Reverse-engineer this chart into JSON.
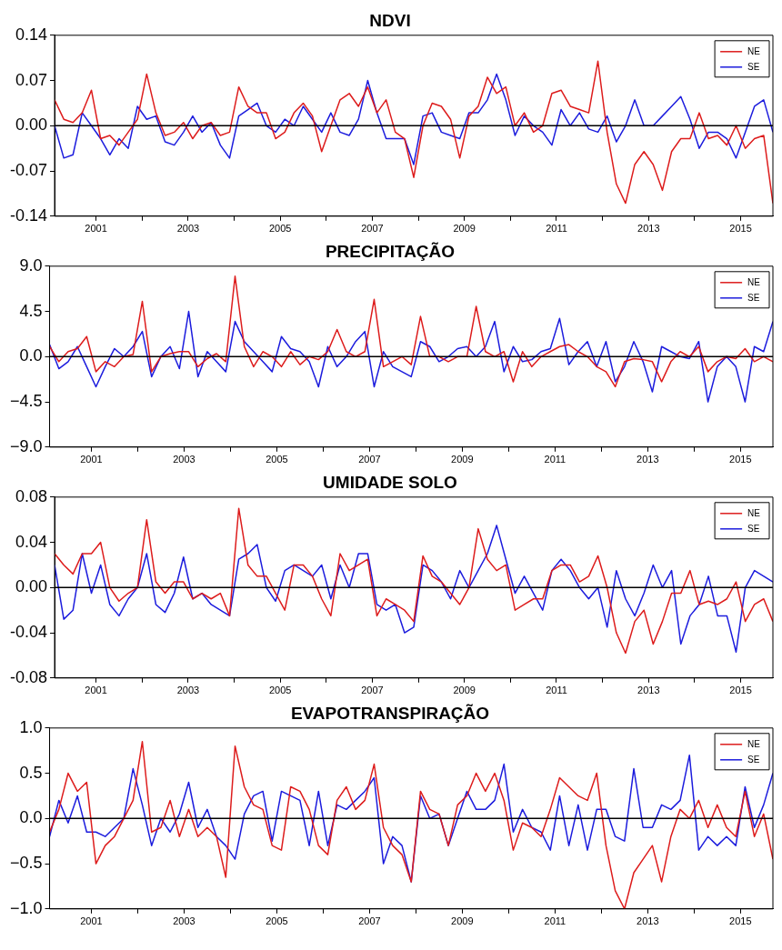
{
  "chart_data": [
    {
      "type": "line",
      "title": "NDVI",
      "legend": "top right",
      "grid": false,
      "xlim": [
        2000.1,
        2015.7
      ],
      "ylim": [
        -0.14,
        0.14
      ],
      "xticks": [
        2001,
        {
          "value": 2002,
          "label": null
        },
        2003,
        {
          "value": 2004,
          "label": null
        },
        2005,
        {
          "value": 2006,
          "label": null
        },
        2007,
        {
          "value": 2008,
          "label": null
        },
        2009,
        {
          "value": 2010,
          "label": null
        },
        2011,
        {
          "value": 2012,
          "label": null
        },
        2013,
        {
          "value": 2014,
          "label": null
        },
        2015
      ],
      "yticks": [
        -0.14,
        -0.07,
        {
          "value": 0,
          "label": "0.00"
        },
        0.07,
        0.14
      ],
      "ref_lines": [
        {
          "axis": "y",
          "value": 0,
          "color": "#000000"
        }
      ],
      "x": [
        2000.1,
        2000.3,
        2000.5,
        2000.7,
        2000.9,
        2001.1,
        2001.3,
        2001.5,
        2001.7,
        2001.9,
        2002.1,
        2002.3,
        2002.5,
        2002.7,
        2002.9,
        2003.1,
        2003.3,
        2003.5,
        2003.7,
        2003.9,
        2004.1,
        2004.3,
        2004.5,
        2004.7,
        2004.9,
        2005.1,
        2005.3,
        2005.5,
        2005.7,
        2005.9,
        2006.1,
        2006.3,
        2006.5,
        2006.7,
        2006.9,
        2007.1,
        2007.3,
        2007.5,
        2007.7,
        2007.9,
        2008.1,
        2008.3,
        2008.5,
        2008.7,
        2008.9,
        2009.1,
        2009.3,
        2009.5,
        2009.7,
        2009.9,
        2010.1,
        2010.3,
        2010.5,
        2010.7,
        2010.9,
        2011.1,
        2011.3,
        2011.5,
        2011.7,
        2011.9,
        2012.1,
        2012.3,
        2012.5,
        2012.7,
        2012.9,
        2013.1,
        2013.3,
        2013.5,
        2013.7,
        2013.9,
        2014.1,
        2014.3,
        2014.5,
        2014.7,
        2014.9,
        2015.1,
        2015.3,
        2015.5,
        2015.7
      ],
      "series": [
        {
          "name": "NE",
          "color": "#dd1c1c",
          "values": [
            0.04,
            0.01,
            0.005,
            0.02,
            0.055,
            -0.02,
            -0.015,
            -0.03,
            -0.01,
            0.01,
            0.08,
            0.02,
            -0.015,
            -0.01,
            0.005,
            -0.02,
            0,
            0.005,
            -0.015,
            -0.01,
            0.06,
            0.03,
            0.02,
            0.02,
            -0.02,
            -0.01,
            0.02,
            0.035,
            0.015,
            -0.04,
            0,
            0.04,
            0.05,
            0.03,
            0.06,
            0.02,
            0.04,
            -0.01,
            -0.02,
            -0.08,
            0,
            0.035,
            0.03,
            0.01,
            -0.05,
            0.015,
            0.03,
            0.075,
            0.05,
            0.06,
            0,
            0.02,
            -0.01,
            0,
            0.05,
            0.055,
            0.03,
            0.025,
            0.02,
            0.1,
            -0.01,
            -0.09,
            -0.12,
            -0.06,
            -0.04,
            -0.06,
            -0.1,
            -0.04,
            -0.02,
            -0.02,
            0.02,
            -0.02,
            -0.015,
            -0.03,
            0,
            -0.035,
            -0.02,
            -0.015,
            -0.12
          ]
        },
        {
          "name": "SE",
          "color": "#1c1cdd",
          "values": [
            0,
            -0.05,
            -0.045,
            0.02,
            0,
            -0.02,
            -0.045,
            -0.02,
            -0.035,
            0.03,
            0.01,
            0.015,
            -0.025,
            -0.03,
            -0.01,
            0.015,
            -0.01,
            0.005,
            -0.03,
            -0.05,
            0.015,
            0.025,
            0.035,
            0,
            -0.01,
            0.01,
            0,
            0.03,
            0.01,
            -0.01,
            0.02,
            -0.01,
            -0.015,
            0.01,
            0.07,
            0.02,
            -0.02,
            -0.02,
            -0.02,
            -0.06,
            0.015,
            0.02,
            -0.01,
            -0.015,
            -0.02,
            0.02,
            0.02,
            0.04,
            0.08,
            0.04,
            -0.015,
            0.015,
            0,
            -0.01,
            -0.03,
            0.025,
            0,
            0.02,
            -0.005,
            -0.01,
            0.015,
            -0.025,
            0,
            0.04,
            0,
            0,
            0.015,
            0.03,
            0.045,
            0.01,
            -0.035,
            -0.01,
            -0.01,
            -0.02,
            -0.05,
            -0.01,
            0.03,
            0.04,
            -0.01
          ]
        }
      ]
    },
    {
      "type": "line",
      "title": "PRECIPITAÇÃO",
      "legend": "top right",
      "grid": false,
      "xlim": [
        2000.1,
        2015.7
      ],
      "ylim": [
        -9,
        9
      ],
      "xticks": [
        2001,
        {
          "value": 2002,
          "label": null
        },
        2003,
        {
          "value": 2004,
          "label": null
        },
        2005,
        {
          "value": 2006,
          "label": null
        },
        2007,
        {
          "value": 2008,
          "label": null
        },
        2009,
        {
          "value": 2010,
          "label": null
        },
        2011,
        {
          "value": 2012,
          "label": null
        },
        2013,
        {
          "value": 2014,
          "label": null
        },
        2015
      ],
      "yticks": [
        {
          "value": -9,
          "label": "−9.0"
        },
        {
          "value": -4.5,
          "label": "−4.5"
        },
        {
          "value": 0,
          "label": "0.0"
        },
        {
          "value": 4.5,
          "label": "4.5"
        },
        {
          "value": 9,
          "label": "9.0"
        }
      ],
      "ref_lines": [
        {
          "axis": "y",
          "value": 0,
          "color": "#000000"
        }
      ],
      "x": [
        2000.1,
        2000.3,
        2000.5,
        2000.7,
        2000.9,
        2001.1,
        2001.3,
        2001.5,
        2001.7,
        2001.9,
        2002.1,
        2002.3,
        2002.5,
        2002.7,
        2002.9,
        2003.1,
        2003.3,
        2003.5,
        2003.7,
        2003.9,
        2004.1,
        2004.3,
        2004.5,
        2004.7,
        2004.9,
        2005.1,
        2005.3,
        2005.5,
        2005.7,
        2005.9,
        2006.1,
        2006.3,
        2006.5,
        2006.7,
        2006.9,
        2007.1,
        2007.3,
        2007.5,
        2007.7,
        2007.9,
        2008.1,
        2008.3,
        2008.5,
        2008.7,
        2008.9,
        2009.1,
        2009.3,
        2009.5,
        2009.7,
        2009.9,
        2010.1,
        2010.3,
        2010.5,
        2010.7,
        2010.9,
        2011.1,
        2011.3,
        2011.5,
        2011.7,
        2011.9,
        2012.1,
        2012.3,
        2012.5,
        2012.7,
        2012.9,
        2013.1,
        2013.3,
        2013.5,
        2013.7,
        2013.9,
        2014.1,
        2014.3,
        2014.5,
        2014.7,
        2014.9,
        2015.1,
        2015.3,
        2015.5,
        2015.7
      ],
      "series": [
        {
          "name": "NE",
          "color": "#dd1c1c",
          "values": [
            1.0,
            -0.5,
            0.5,
            0.8,
            2.0,
            -1.5,
            -0.5,
            -1.0,
            0.0,
            0.2,
            5.5,
            -1.5,
            0.0,
            0.3,
            0.5,
            0.5,
            -1.0,
            -0.2,
            0.3,
            -0.5,
            8.0,
            1.0,
            -1.0,
            0.5,
            0.0,
            -1.0,
            0.5,
            -0.8,
            0.0,
            -0.3,
            0.5,
            2.7,
            0.5,
            0.0,
            0.5,
            5.7,
            -1.0,
            -0.5,
            0.0,
            -0.8,
            4.0,
            0.0,
            0.0,
            -0.5,
            0.0,
            0.0,
            5.0,
            0.5,
            0.0,
            0.5,
            -2.5,
            0.5,
            -1.0,
            0.0,
            0.5,
            1.0,
            1.2,
            0.5,
            0.0,
            -1.0,
            -1.5,
            -3.0,
            -0.5,
            -0.2,
            -0.3,
            -0.5,
            -2.5,
            -0.5,
            0.5,
            0.0,
            1.0,
            -1.5,
            -0.5,
            0.0,
            -0.2,
            0.8,
            -0.5,
            0.0,
            -0.5
          ]
        },
        {
          "name": "SE",
          "color": "#1c1cdd",
          "values": [
            1.2,
            -1.2,
            -0.5,
            1.0,
            -1.0,
            -3.0,
            -1.0,
            0.8,
            0.0,
            1.0,
            2.5,
            -2.0,
            0.0,
            1.0,
            -1.2,
            4.5,
            -2.0,
            0.5,
            -0.5,
            -1.5,
            3.5,
            1.5,
            0.5,
            -0.5,
            -1.5,
            2.0,
            0.8,
            0.5,
            -0.5,
            -3.0,
            1.0,
            -1.0,
            0.0,
            1.5,
            2.5,
            -3.0,
            0.5,
            -1.0,
            -1.5,
            -2.0,
            1.5,
            1.0,
            -0.5,
            0.0,
            0.8,
            1.0,
            0.0,
            1.0,
            3.5,
            -1.5,
            1.0,
            -0.5,
            -0.3,
            0.5,
            0.8,
            3.8,
            -0.8,
            0.5,
            1.5,
            -1.0,
            1.5,
            -2.5,
            -1.0,
            1.5,
            -0.5,
            -3.5,
            1.0,
            0.5,
            0.0,
            -0.2,
            1.5,
            -4.5,
            -1.0,
            0.0,
            -1.0,
            -4.5,
            1.0,
            0.5,
            3.5
          ]
        }
      ]
    },
    {
      "type": "line",
      "title": "UMIDADE SOLO",
      "legend": "top right",
      "grid": false,
      "xlim": [
        2000.1,
        2015.7
      ],
      "ylim": [
        -0.08,
        0.08
      ],
      "xticks": [
        2001,
        {
          "value": 2002,
          "label": null
        },
        2003,
        {
          "value": 2004,
          "label": null
        },
        2005,
        {
          "value": 2006,
          "label": null
        },
        2007,
        {
          "value": 2008,
          "label": null
        },
        2009,
        {
          "value": 2010,
          "label": null
        },
        2011,
        {
          "value": 2012,
          "label": null
        },
        2013,
        {
          "value": 2014,
          "label": null
        },
        2015
      ],
      "yticks": [
        {
          "value": -0.08,
          "label": "-0.08"
        },
        {
          "value": -0.04,
          "label": "-0.04"
        },
        {
          "value": 0,
          "label": "0.00"
        },
        {
          "value": 0.04,
          "label": "0.04"
        },
        {
          "value": 0.08,
          "label": "0.08"
        }
      ],
      "ref_lines": [
        {
          "axis": "y",
          "value": 0,
          "color": "#000000"
        }
      ],
      "x": [
        2000.1,
        2000.3,
        2000.5,
        2000.7,
        2000.9,
        2001.1,
        2001.3,
        2001.5,
        2001.7,
        2001.9,
        2002.1,
        2002.3,
        2002.5,
        2002.7,
        2002.9,
        2003.1,
        2003.3,
        2003.5,
        2003.7,
        2003.9,
        2004.1,
        2004.3,
        2004.5,
        2004.7,
        2004.9,
        2005.1,
        2005.3,
        2005.5,
        2005.7,
        2005.9,
        2006.1,
        2006.3,
        2006.5,
        2006.7,
        2006.9,
        2007.1,
        2007.3,
        2007.5,
        2007.7,
        2007.9,
        2008.1,
        2008.3,
        2008.5,
        2008.7,
        2008.9,
        2009.1,
        2009.3,
        2009.5,
        2009.7,
        2009.9,
        2010.1,
        2010.3,
        2010.5,
        2010.7,
        2010.9,
        2011.1,
        2011.3,
        2011.5,
        2011.7,
        2011.9,
        2012.1,
        2012.3,
        2012.5,
        2012.7,
        2012.9,
        2013.1,
        2013.3,
        2013.5,
        2013.7,
        2013.9,
        2014.1,
        2014.3,
        2014.5,
        2014.7,
        2014.9,
        2015.1,
        2015.3,
        2015.5,
        2015.7
      ],
      "series": [
        {
          "name": "NE",
          "color": "#dd1c1c",
          "values": [
            0.03,
            0.02,
            0.012,
            0.03,
            0.03,
            0.04,
            0,
            -0.012,
            -0.005,
            0,
            0.06,
            0.005,
            -0.005,
            0.005,
            0.005,
            -0.01,
            -0.005,
            -0.01,
            -0.005,
            -0.025,
            0.07,
            0.02,
            0.01,
            0.01,
            -0.005,
            -0.02,
            0.02,
            0.02,
            0.01,
            -0.01,
            -0.025,
            0.03,
            0.015,
            0.02,
            0.025,
            -0.025,
            -0.01,
            -0.015,
            -0.02,
            -0.03,
            0.028,
            0.01,
            0.005,
            -0.005,
            -0.015,
            0,
            0.052,
            0.025,
            0.015,
            0.02,
            -0.02,
            -0.015,
            -0.01,
            -0.01,
            0.015,
            0.02,
            0.02,
            0.005,
            0.01,
            0.028,
            0,
            -0.04,
            -0.058,
            -0.03,
            -0.02,
            -0.05,
            -0.03,
            -0.005,
            -0.005,
            0.015,
            -0.015,
            -0.012,
            -0.015,
            -0.01,
            0.005,
            -0.03,
            -0.015,
            -0.01,
            -0.03
          ]
        },
        {
          "name": "SE",
          "color": "#1c1cdd",
          "values": [
            0.02,
            -0.028,
            -0.02,
            0.03,
            -0.005,
            0.02,
            -0.015,
            -0.025,
            -0.01,
            0,
            0.03,
            -0.015,
            -0.022,
            -0.005,
            0.027,
            -0.01,
            -0.005,
            -0.015,
            -0.02,
            -0.025,
            0.025,
            0.03,
            0.038,
            0,
            -0.012,
            0.015,
            0.02,
            0.015,
            0.01,
            0.02,
            -0.01,
            0.02,
            0,
            0.03,
            0.03,
            -0.015,
            -0.02,
            -0.015,
            -0.04,
            -0.035,
            0.02,
            0.015,
            0.005,
            -0.01,
            0.015,
            0,
            0.015,
            0.03,
            0.055,
            0.025,
            -0.005,
            0.01,
            -0.005,
            -0.02,
            0.015,
            0.025,
            0.015,
            0,
            -0.01,
            0,
            -0.035,
            0.015,
            -0.01,
            -0.025,
            -0.005,
            0.02,
            0,
            0.015,
            -0.05,
            -0.025,
            -0.015,
            0.01,
            -0.025,
            -0.025,
            -0.057,
            0,
            0.015,
            0.01,
            0.005
          ]
        }
      ]
    },
    {
      "type": "line",
      "title": "EVAPOTRANSPIRAÇÃO",
      "legend": "top right",
      "grid": false,
      "xlim": [
        2000.1,
        2015.7
      ],
      "ylim": [
        -1,
        1
      ],
      "xticks": [
        2001,
        {
          "value": 2002,
          "label": null
        },
        2003,
        {
          "value": 2004,
          "label": null
        },
        2005,
        {
          "value": 2006,
          "label": null
        },
        2007,
        {
          "value": 2008,
          "label": null
        },
        2009,
        {
          "value": 2010,
          "label": null
        },
        2011,
        {
          "value": 2012,
          "label": null
        },
        2013,
        {
          "value": 2014,
          "label": null
        },
        2015
      ],
      "yticks": [
        {
          "value": -1,
          "label": "−1.0"
        },
        {
          "value": -0.5,
          "label": "−0.5"
        },
        {
          "value": 0,
          "label": "0.0"
        },
        {
          "value": 0.5,
          "label": "0.5"
        },
        {
          "value": 1,
          "label": "1.0"
        }
      ],
      "ref_lines": [
        {
          "axis": "y",
          "value": 0,
          "color": "#000000"
        }
      ],
      "x": [
        2000.1,
        2000.3,
        2000.5,
        2000.7,
        2000.9,
        2001.1,
        2001.3,
        2001.5,
        2001.7,
        2001.9,
        2002.1,
        2002.3,
        2002.5,
        2002.7,
        2002.9,
        2003.1,
        2003.3,
        2003.5,
        2003.7,
        2003.9,
        2004.1,
        2004.3,
        2004.5,
        2004.7,
        2004.9,
        2005.1,
        2005.3,
        2005.5,
        2005.7,
        2005.9,
        2006.1,
        2006.3,
        2006.5,
        2006.7,
        2006.9,
        2007.1,
        2007.3,
        2007.5,
        2007.7,
        2007.9,
        2008.1,
        2008.3,
        2008.5,
        2008.7,
        2008.9,
        2009.1,
        2009.3,
        2009.5,
        2009.7,
        2009.9,
        2010.1,
        2010.3,
        2010.5,
        2010.7,
        2010.9,
        2011.1,
        2011.3,
        2011.5,
        2011.7,
        2011.9,
        2012.1,
        2012.3,
        2012.5,
        2012.7,
        2012.9,
        2013.1,
        2013.3,
        2013.5,
        2013.7,
        2013.9,
        2014.1,
        2014.3,
        2014.5,
        2014.7,
        2014.9,
        2015.1,
        2015.3,
        2015.5,
        2015.7
      ],
      "series": [
        {
          "name": "NE",
          "color": "#dd1c1c",
          "values": [
            -0.15,
            0.1,
            0.5,
            0.3,
            0.4,
            -0.5,
            -0.3,
            -0.2,
            0,
            0.2,
            0.85,
            -0.15,
            -0.1,
            0.2,
            -0.2,
            0.1,
            -0.2,
            -0.1,
            -0.2,
            -0.65,
            0.8,
            0.35,
            0.15,
            0.1,
            -0.3,
            -0.35,
            0.35,
            0.3,
            0.1,
            -0.3,
            -0.4,
            0.2,
            0.35,
            0.1,
            0.2,
            0.6,
            -0.1,
            -0.3,
            -0.4,
            -0.7,
            0.3,
            0.1,
            0.05,
            -0.3,
            0.15,
            0.25,
            0.5,
            0.3,
            0.5,
            0.2,
            -0.35,
            -0.05,
            -0.1,
            -0.2,
            0.1,
            0.45,
            0.35,
            0.25,
            0.2,
            0.5,
            -0.3,
            -0.8,
            -1,
            -0.6,
            -0.45,
            -0.3,
            -0.7,
            -0.2,
            0.1,
            0,
            0.2,
            -0.1,
            0.15,
            -0.1,
            -0.2,
            0.3,
            -0.2,
            0.05,
            -0.45
          ]
        },
        {
          "name": "SE",
          "color": "#1c1cdd",
          "values": [
            -0.2,
            0.2,
            -0.05,
            0.25,
            -0.15,
            -0.15,
            -0.2,
            -0.1,
            0,
            0.55,
            0.15,
            -0.3,
            0,
            -0.15,
            0.05,
            0.4,
            -0.1,
            0.1,
            -0.2,
            -0.3,
            -0.45,
            0.05,
            0.25,
            0.3,
            -0.25,
            0.3,
            0.25,
            0.2,
            -0.3,
            0.3,
            -0.3,
            0.15,
            0.1,
            0.2,
            0.3,
            0.45,
            -0.5,
            -0.2,
            -0.3,
            -0.7,
            0.25,
            0,
            0.05,
            -0.3,
            0,
            0.3,
            0.1,
            0.1,
            0.2,
            0.6,
            -0.15,
            0.1,
            -0.1,
            -0.15,
            -0.35,
            0.25,
            -0.3,
            0.15,
            -0.35,
            0.1,
            0.1,
            -0.2,
            -0.25,
            0.55,
            -0.1,
            -0.1,
            0.15,
            0.1,
            0.2,
            0.7,
            -0.35,
            -0.2,
            -0.3,
            -0.2,
            -0.3,
            0.35,
            -0.1,
            0.15,
            0.5
          ]
        }
      ]
    }
  ]
}
